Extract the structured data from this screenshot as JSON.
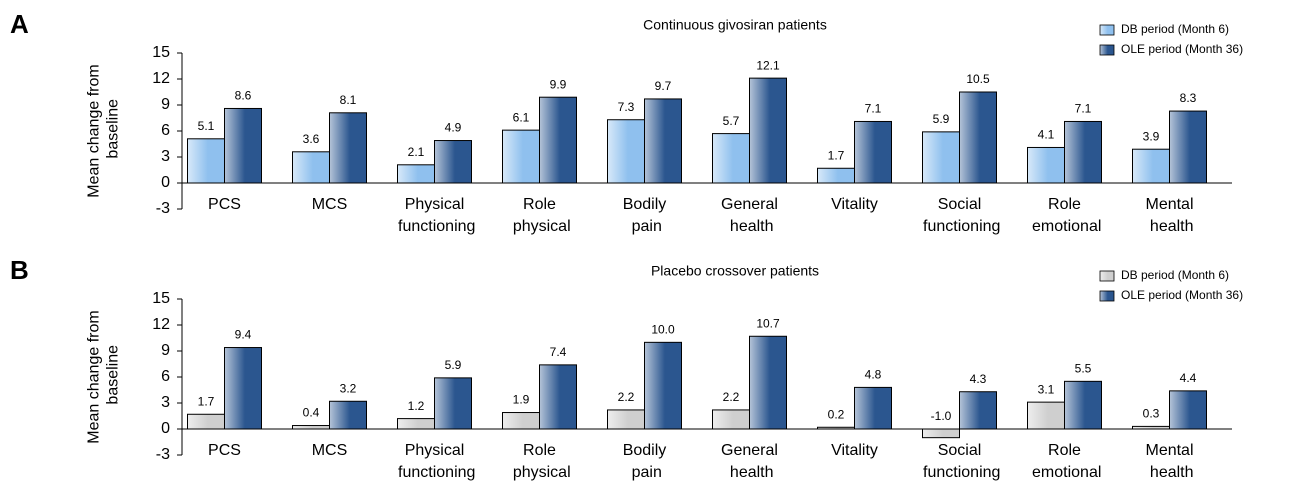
{
  "chart_data": [
    {
      "type": "bar",
      "panel_label": "A",
      "title": "Continuous givosiran patients",
      "y_label": "Mean change from baseline",
      "categories": [
        "PCS",
        "MCS",
        "Physical functioning",
        "Role physical",
        "Bodily pain",
        "General health",
        "Vitality",
        "Social functioning",
        "Role emotional",
        "Mental health"
      ],
      "series": [
        {
          "name": "DB period (Month 6)",
          "color": "#8fc0ee",
          "values": [
            5.1,
            3.6,
            2.1,
            6.1,
            7.3,
            5.7,
            1.7,
            5.9,
            4.1,
            3.9
          ],
          "value_labels": [
            "5.1",
            "3.6",
            "2.1",
            "6.1",
            "7.3",
            "5.7",
            "1.7",
            "5.9",
            "4.1",
            "3.9"
          ]
        },
        {
          "name": "OLE period (Month 36)",
          "color": "#2b568f",
          "values": [
            8.6,
            8.1,
            4.9,
            9.9,
            9.7,
            12.1,
            7.1,
            10.5,
            7.1,
            8.3
          ],
          "value_labels": [
            "8.6",
            "8.1",
            "4.9",
            "9.9",
            "9.7",
            "12.1",
            "7.1",
            "10.5",
            "7.1",
            "8.3"
          ]
        }
      ],
      "ylim": [
        -3,
        15
      ],
      "yticks": [
        -3,
        0,
        3,
        6,
        9,
        12,
        15
      ],
      "legend": "upper right"
    },
    {
      "type": "bar",
      "panel_label": "B",
      "title": "Placebo crossover patients",
      "y_label": "Mean change from baseline",
      "categories": [
        "PCS",
        "MCS",
        "Physical functioning",
        "Role physical",
        "Bodily pain",
        "General health",
        "Vitality",
        "Social functioning",
        "Role emotional",
        "Mental health"
      ],
      "series": [
        {
          "name": "DB period (Month 6)",
          "color": "#cfcfcf",
          "values": [
            1.7,
            0.4,
            1.2,
            1.9,
            2.2,
            2.2,
            0.2,
            -1.0,
            3.1,
            0.3
          ],
          "value_labels": [
            "1.7",
            "0.4",
            "1.2",
            "1.9",
            "2.2",
            "2.2",
            "0.2",
            "-1.0",
            "3.1",
            "0.3"
          ]
        },
        {
          "name": "OLE period (Month 36)",
          "color": "#2b568f",
          "values": [
            9.4,
            3.2,
            5.9,
            7.4,
            10.0,
            10.7,
            4.8,
            4.3,
            5.5,
            4.4
          ],
          "value_labels": [
            "9.4",
            "3.2",
            "5.9",
            "7.4",
            "10.0",
            "10.7",
            "4.8",
            "4.3",
            "5.5",
            "4.4"
          ]
        }
      ],
      "ylim": [
        -3,
        15
      ],
      "yticks": [
        -3,
        0,
        3,
        6,
        9,
        12,
        15
      ],
      "legend": "upper right"
    }
  ]
}
